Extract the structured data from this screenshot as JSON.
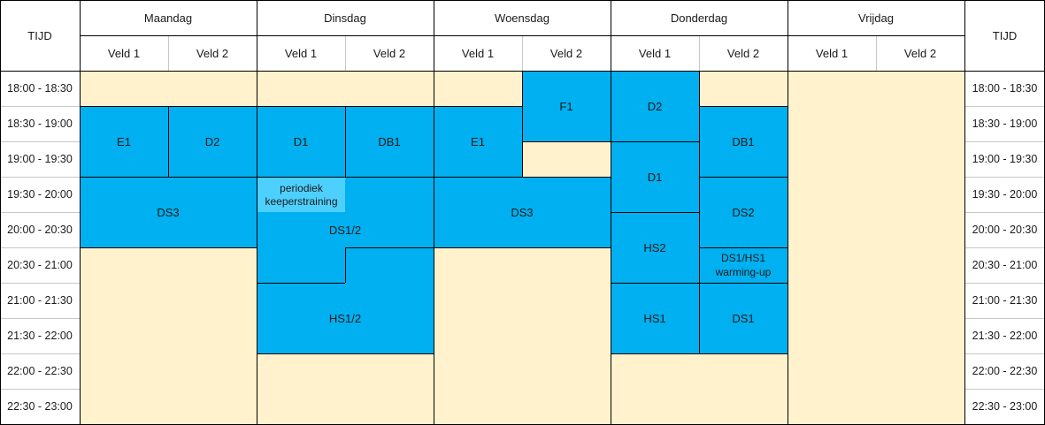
{
  "tijd_label": "TIJD",
  "days": [
    "Maandag",
    "Dinsdag",
    "Woensdag",
    "Donderdag",
    "Vrijdag"
  ],
  "fields": [
    "Veld 1",
    "Veld 2"
  ],
  "time_slots": [
    "18:00 - 18:30",
    "18:30 - 19:00",
    "19:00 - 19:30",
    "19:30 - 20:00",
    "20:00 - 20:30",
    "20:30 - 21:00",
    "21:00 - 21:30",
    "21:30 - 22:00",
    "22:00 - 22:30",
    "22:30 - 23:00"
  ],
  "colors": {
    "block": "#00b0f0",
    "note": "#4ed0ff",
    "empty": "#fff2cc"
  },
  "sessions": [
    {
      "day": "Maandag",
      "field": "Veld 1",
      "time": "18:30 - 19:30",
      "label": "E1"
    },
    {
      "day": "Maandag",
      "field": "Veld 2",
      "time": "18:30 - 19:30",
      "label": "D2"
    },
    {
      "day": "Maandag",
      "field": "Veld 1 + Veld 2",
      "time": "19:30 - 20:30",
      "label": "DS3"
    },
    {
      "day": "Dinsdag",
      "field": "Veld 1",
      "time": "18:30 - 19:30",
      "label": "D1"
    },
    {
      "day": "Dinsdag",
      "field": "Veld 2",
      "time": "18:30 - 19:30",
      "label": "DB1"
    },
    {
      "day": "Dinsdag",
      "field": "Veld 1 + Veld 2",
      "time": "19:30 - 21:00",
      "label": "DS1/2"
    },
    {
      "day": "Dinsdag",
      "field": "Veld 1",
      "time": "19:30 - 20:00",
      "label": "periodiek\nkeeperstraining"
    },
    {
      "day": "Dinsdag",
      "field": "Veld 1 + Veld 2",
      "time": "21:00 - 22:00",
      "label": "HS1/2"
    },
    {
      "day": "Woensdag",
      "field": "Veld 1",
      "time": "18:30 - 19:30",
      "label": "E1"
    },
    {
      "day": "Woensdag",
      "field": "Veld 2",
      "time": "18:00 - 19:00",
      "label": "F1"
    },
    {
      "day": "Woensdag",
      "field": "Veld 1 + Veld 2",
      "time": "19:30 - 20:30",
      "label": "DS3"
    },
    {
      "day": "Donderdag",
      "field": "Veld 1",
      "time": "18:00 - 19:00",
      "label": "D2"
    },
    {
      "day": "Donderdag",
      "field": "Veld 1",
      "time": "19:00 - 20:00",
      "label": "D1"
    },
    {
      "day": "Donderdag",
      "field": "Veld 1",
      "time": "20:00 - 21:00",
      "label": "HS2"
    },
    {
      "day": "Donderdag",
      "field": "Veld 1",
      "time": "21:00 - 22:00",
      "label": "HS1"
    },
    {
      "day": "Donderdag",
      "field": "Veld 2",
      "time": "18:30 - 19:30",
      "label": "DB1"
    },
    {
      "day": "Donderdag",
      "field": "Veld 2",
      "time": "19:30 - 20:30",
      "label": "DS2"
    },
    {
      "day": "Donderdag",
      "field": "Veld 2",
      "time": "20:30 - 21:00",
      "label": "DS1/HS1\nwarming-up"
    },
    {
      "day": "Donderdag",
      "field": "Veld 2",
      "time": "21:00 - 22:00",
      "label": "DS1"
    }
  ]
}
